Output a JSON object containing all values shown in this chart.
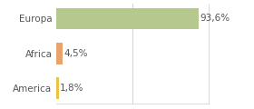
{
  "categories": [
    "America",
    "Africa",
    "Europa"
  ],
  "values": [
    1.8,
    4.5,
    93.6
  ],
  "labels": [
    "1,8%",
    "4,5%",
    "93,6%"
  ],
  "bar_colors": [
    "#f0c040",
    "#e8a46a",
    "#b5c98e"
  ],
  "background_color": "#ffffff",
  "xlim": [
    0,
    100
  ],
  "bar_height": 0.62,
  "label_fontsize": 7.5,
  "tick_fontsize": 7.5,
  "grid_color": "#cccccc",
  "spine_color": "#cccccc",
  "text_color": "#555555"
}
